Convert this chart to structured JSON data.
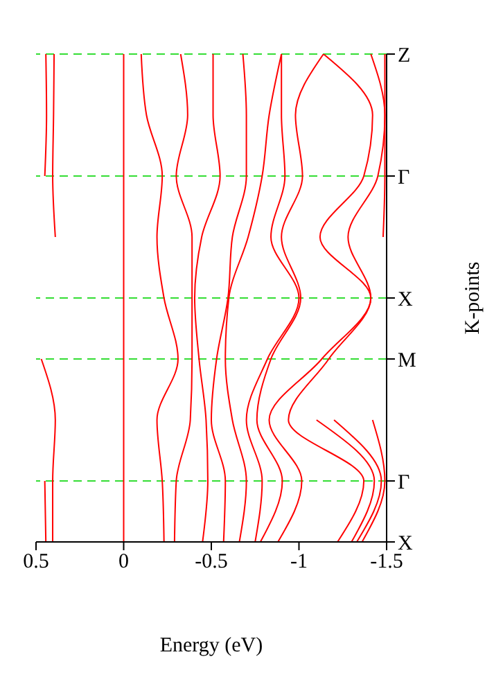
{
  "chart_data": {
    "type": "line",
    "orientation": "horizontal",
    "xlabel": "Energy (eV)",
    "ylabel": "K-points",
    "categories": [
      "Z",
      null,
      "Γ",
      null,
      "X",
      "M",
      null,
      "Γ",
      "X"
    ],
    "xlim": [
      0.5,
      -1.5
    ],
    "xticks": [
      0.5,
      0,
      -0.5,
      -1,
      -1.5
    ],
    "grid": "y",
    "marker": "none",
    "line_style": "solid",
    "ref_lines": [
      {
        "axis": "x",
        "value": 0,
        "color": "#ff0000",
        "line_style": "solid"
      }
    ],
    "series": [
      {
        "color": "#ff0000",
        "values": [
          0.444,
          0.44,
          0.45,
          null,
          null,
          null,
          null,
          0.45,
          0.444
        ]
      },
      {
        "color": "#ff0000",
        "values": [
          0.397,
          0.4,
          0.405,
          0.39,
          null,
          0.47,
          0.39,
          0.405,
          0.405
        ]
      },
      {
        "color": "#ff0000",
        "values": [
          -0.1,
          -0.13,
          -0.22,
          -0.19,
          -0.23,
          -0.31,
          -0.19,
          -0.22,
          -0.23
        ]
      },
      {
        "color": "#ff0000",
        "values": [
          -0.325,
          -0.365,
          -0.3,
          -0.39,
          -0.39,
          -0.39,
          -0.38,
          -0.3,
          -0.29
        ]
      },
      {
        "color": "#ff0000",
        "values": [
          -0.51,
          -0.51,
          -0.55,
          -0.445,
          -0.405,
          -0.43,
          -0.47,
          -0.48,
          -0.45
        ]
      },
      {
        "color": "#ff0000",
        "values": [
          -0.68,
          -0.7,
          -0.7,
          -0.62,
          -0.595,
          -0.53,
          -0.5,
          -0.58,
          -0.57
        ]
      },
      {
        "color": "#ff0000",
        "values": [
          -0.9,
          -0.83,
          -0.79,
          -0.71,
          -0.6,
          -0.58,
          -0.62,
          -0.7,
          -0.66
        ]
      },
      {
        "color": "#ff0000",
        "values": [
          -0.9,
          -0.9,
          -0.92,
          -0.84,
          -1.0,
          -0.82,
          -0.7,
          -0.79,
          -0.75
        ]
      },
      {
        "color": "#ff0000",
        "values": [
          -1.14,
          -0.98,
          -1.02,
          -0.9,
          -1.01,
          -0.84,
          -0.76,
          -0.905,
          -0.78
        ]
      },
      {
        "color": "#ff0000",
        "values": [
          -1.14,
          -1.42,
          -1.37,
          -1.12,
          -1.41,
          -1.13,
          -0.83,
          -1.016,
          -0.88
        ]
      },
      {
        "color": "#ff0000",
        "values": [
          -1.41,
          -1.49,
          -1.45,
          -1.28,
          -1.41,
          -1.17,
          -0.94,
          -1.37,
          -1.22
        ]
      },
      {
        "color": "#ff0000",
        "values": [
          -1.49,
          -1.49,
          -1.49,
          -1.48,
          null,
          null,
          -1.1,
          -1.43,
          -1.3
        ]
      },
      {
        "color": "#ff0000",
        "values": [
          null,
          null,
          null,
          null,
          null,
          null,
          -1.2,
          -1.47,
          -1.33
        ]
      },
      {
        "color": "#ff0000",
        "values": [
          null,
          null,
          null,
          null,
          null,
          null,
          -1.42,
          -1.49,
          -1.36
        ]
      }
    ]
  }
}
